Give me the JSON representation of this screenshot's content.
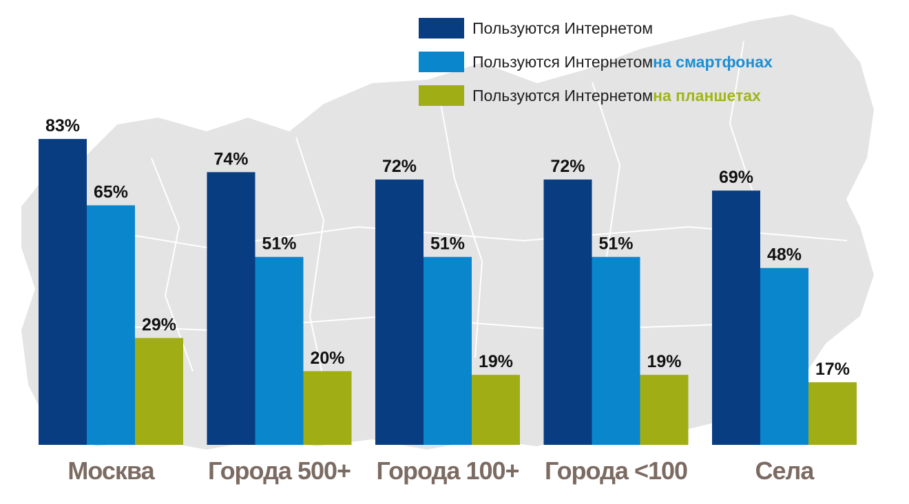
{
  "chart_data": {
    "type": "bar",
    "title": "",
    "xlabel": "",
    "ylabel": "",
    "ylim": [
      0,
      100
    ],
    "grid": false,
    "legend_position": "top-right",
    "categories": [
      "Москва",
      "Города 500+",
      "Города 100+",
      "Города <100",
      "Села"
    ],
    "series": [
      {
        "name": "Пользуются Интернетом",
        "name_parts": [
          "Пользуются Интернетом",
          ""
        ],
        "color": "#083d82",
        "accent_color": "#083d82",
        "values": [
          83,
          74,
          72,
          72,
          69
        ],
        "labels": [
          "83%",
          "74%",
          "72%",
          "72%",
          "69%"
        ]
      },
      {
        "name": "Пользуются Интернетом на смартфонах",
        "name_parts": [
          "Пользуются Интернетом ",
          "на смартфонах"
        ],
        "color": "#0986cc",
        "accent_color": "#1a8fd6",
        "values": [
          65,
          51,
          51,
          51,
          48
        ],
        "labels": [
          "65%",
          "51%",
          "51%",
          "51%",
          "48%"
        ]
      },
      {
        "name": "Пользуются Интернетом на планшетах",
        "name_parts": [
          "Пользуются Интернетом ",
          "на планшетах"
        ],
        "color": "#a0ad15",
        "accent_color": "#a0b51a",
        "values": [
          29,
          20,
          19,
          19,
          17
        ],
        "labels": [
          "29%",
          "20%",
          "19%",
          "19%",
          "17%"
        ]
      }
    ]
  }
}
